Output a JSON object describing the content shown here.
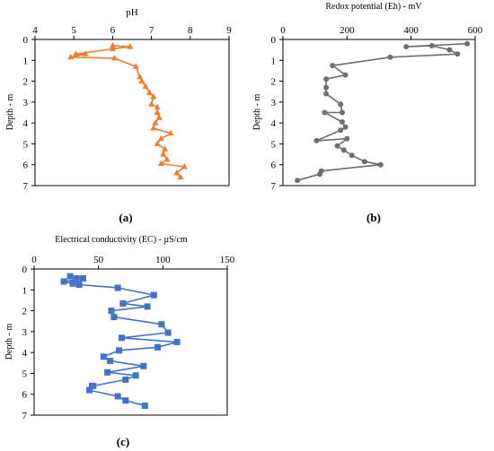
{
  "chart_data": [
    {
      "id": "a",
      "type": "line",
      "title": "pH",
      "xlabel": "pH",
      "ylabel": "Depth - m",
      "caption": "(a)",
      "x_axis_position": "top",
      "y_inverted": true,
      "xlim": [
        4,
        9
      ],
      "ylim": [
        0,
        7
      ],
      "xticks": [
        "4",
        "5",
        "6",
        "7",
        "8",
        "9"
      ],
      "yticks": [
        "0",
        "1",
        "2",
        "3",
        "4",
        "5",
        "6",
        "7"
      ],
      "color": "#ED7D31",
      "marker": "triangle",
      "series": [
        {
          "x": [
            6.0,
            6.45,
            6.0,
            5.05,
            5.3,
            4.92,
            6.05,
            6.6,
            6.7,
            6.75,
            6.85,
            6.95,
            7.05,
            7.0,
            7.15,
            7.15,
            7.2,
            7.1,
            7.05,
            7.5,
            7.25,
            7.15,
            7.35,
            7.3,
            7.4,
            7.25,
            7.85,
            7.65,
            7.75
          ],
          "y": [
            0.3,
            0.35,
            0.45,
            0.7,
            0.7,
            0.85,
            0.9,
            1.3,
            1.8,
            2.0,
            2.25,
            2.55,
            2.75,
            3.1,
            3.25,
            3.5,
            3.75,
            4.0,
            4.25,
            4.5,
            4.75,
            5.0,
            5.25,
            5.5,
            5.75,
            5.95,
            6.1,
            6.4,
            6.6
          ]
        }
      ]
    },
    {
      "id": "b",
      "type": "line",
      "title": "Redox potential (Eh) - mV",
      "xlabel": "Redox potential (Eh) - mV",
      "ylabel": "Depth - m",
      "caption": "(b)",
      "x_axis_position": "top",
      "y_inverted": true,
      "xlim": [
        0,
        600
      ],
      "ylim": [
        0,
        7
      ],
      "xticks": [
        "0",
        "200",
        "400",
        "600"
      ],
      "yticks": [
        "0",
        "1",
        "2",
        "3",
        "4",
        "5",
        "6",
        "7"
      ],
      "color": "#6E6E6E",
      "marker": "circle",
      "series": [
        {
          "x": [
            575,
            385,
            465,
            520,
            545,
            335,
            155,
            195,
            135,
            135,
            135,
            180,
            185,
            130,
            185,
            195,
            180,
            105,
            200,
            170,
            190,
            215,
            255,
            305,
            120,
            115,
            45
          ],
          "y": [
            0.2,
            0.35,
            0.3,
            0.5,
            0.7,
            0.85,
            1.25,
            1.7,
            1.9,
            2.3,
            2.6,
            3.1,
            3.5,
            3.5,
            3.95,
            4.2,
            4.35,
            4.85,
            4.75,
            5.1,
            5.3,
            5.55,
            5.85,
            6.0,
            6.3,
            6.45,
            6.75
          ]
        }
      ]
    },
    {
      "id": "c",
      "type": "line",
      "title": "Electrical conductivity (EC) - µS/cm",
      "xlabel": "Electrical conductivity (EC) - µS/cm",
      "ylabel": "Depth - m",
      "caption": "(c)",
      "x_axis_position": "top",
      "y_inverted": true,
      "xlim": [
        0,
        150
      ],
      "ylim": [
        0,
        7
      ],
      "xticks": [
        "0",
        "50",
        "100",
        "150"
      ],
      "yticks": [
        "0",
        "1",
        "2",
        "3",
        "4",
        "5",
        "6",
        "7"
      ],
      "color": "#4472C4",
      "marker": "square",
      "series": [
        {
          "x": [
            28,
            33,
            38,
            23,
            30,
            35,
            65,
            93,
            69,
            88,
            60,
            62,
            99,
            104,
            68,
            111,
            96,
            66,
            54,
            59,
            85,
            57,
            79,
            71,
            46,
            45,
            43,
            65,
            71,
            86
          ],
          "y": [
            0.35,
            0.45,
            0.45,
            0.6,
            0.7,
            0.75,
            0.9,
            1.25,
            1.65,
            1.8,
            2.0,
            2.3,
            2.65,
            3.05,
            3.3,
            3.5,
            3.75,
            3.9,
            4.2,
            4.4,
            4.65,
            4.95,
            5.1,
            5.3,
            5.6,
            5.6,
            5.8,
            6.1,
            6.3,
            6.55
          ]
        }
      ]
    }
  ]
}
